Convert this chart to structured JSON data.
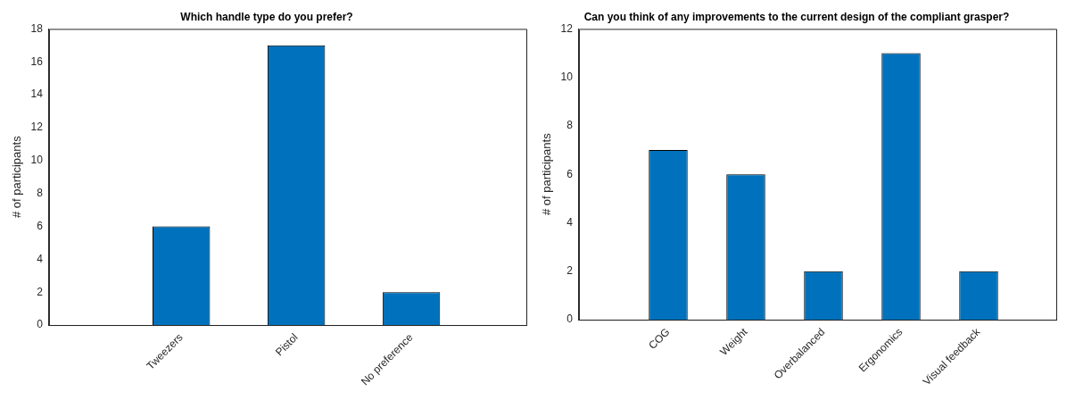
{
  "chart_data": [
    {
      "type": "bar",
      "title": "Which handle type do you prefer?",
      "ylabel": "# of participants",
      "categories": [
        "Tweezers",
        "Pistol",
        "No preference"
      ],
      "values": [
        6,
        17,
        2
      ],
      "color": "#0072bd",
      "ylim": [
        0,
        18
      ],
      "yticks": [
        0,
        2,
        4,
        6,
        8,
        10,
        12,
        14,
        16,
        18
      ]
    },
    {
      "type": "bar",
      "title": "Can you think of any improvements to the current design of the compliant grasper?",
      "ylabel": "# of participants",
      "categories": [
        "COG",
        "Weight",
        "Overbalanced",
        "Ergonomics",
        "Visual feedback"
      ],
      "values": [
        7,
        6,
        2,
        11,
        2
      ],
      "color": "#0072bd",
      "ylim": [
        0,
        12
      ],
      "yticks": [
        0,
        2,
        4,
        6,
        8,
        10,
        12
      ]
    }
  ]
}
